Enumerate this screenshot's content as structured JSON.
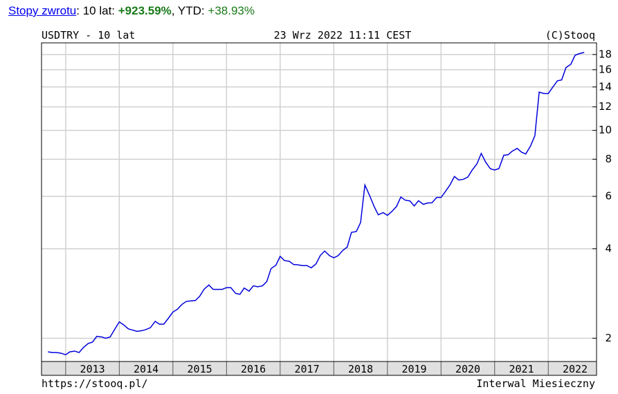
{
  "header": {
    "link": "Stopy zwrotu",
    "sep1": ": 10 lat: ",
    "total": "+923.59%",
    "sep2": ", YTD: ",
    "ytd": "+38.93%"
  },
  "chart_data": {
    "type": "line",
    "title": "USDTRY - 10 lat",
    "date": "23 Wrz 2022 11:11 CEST",
    "copyright": "(C)Stooq",
    "url": "https://stooq.pl/",
    "interval": "Interwal Miesieczny",
    "log_scale": true,
    "grid": true,
    "xlim": [
      2012.55,
      2022.9
    ],
    "xticks": [
      2013,
      2014,
      2015,
      2016,
      2017,
      2018,
      2019,
      2020,
      2021,
      2022
    ],
    "ylim": [
      1.67,
      19.7
    ],
    "yticks": [
      2,
      4,
      6,
      8,
      10,
      12,
      14,
      16,
      18
    ],
    "x": [
      2012.67,
      2012.75,
      2012.83,
      2012.92,
      2013,
      2013.08,
      2013.17,
      2013.25,
      2013.33,
      2013.42,
      2013.5,
      2013.58,
      2013.67,
      2013.75,
      2013.83,
      2013.92,
      2014,
      2014.08,
      2014.17,
      2014.25,
      2014.33,
      2014.42,
      2014.5,
      2014.58,
      2014.67,
      2014.75,
      2014.83,
      2014.92,
      2015,
      2015.08,
      2015.17,
      2015.25,
      2015.33,
      2015.42,
      2015.5,
      2015.58,
      2015.67,
      2015.75,
      2015.83,
      2015.92,
      2016,
      2016.08,
      2016.17,
      2016.25,
      2016.33,
      2016.42,
      2016.5,
      2016.58,
      2016.67,
      2016.75,
      2016.83,
      2016.92,
      2017,
      2017.08,
      2017.17,
      2017.25,
      2017.33,
      2017.42,
      2017.5,
      2017.58,
      2017.67,
      2017.75,
      2017.83,
      2017.92,
      2018,
      2018.08,
      2018.17,
      2018.25,
      2018.33,
      2018.42,
      2018.5,
      2018.58,
      2018.67,
      2018.75,
      2018.83,
      2018.92,
      2019,
      2019.08,
      2019.17,
      2019.25,
      2019.33,
      2019.42,
      2019.5,
      2019.58,
      2019.67,
      2019.75,
      2019.83,
      2019.92,
      2020,
      2020.08,
      2020.17,
      2020.25,
      2020.33,
      2020.42,
      2020.5,
      2020.58,
      2020.67,
      2020.75,
      2020.83,
      2020.92,
      2021,
      2021.08,
      2021.17,
      2021.25,
      2021.33,
      2021.42,
      2021.5,
      2021.58,
      2021.67,
      2021.75,
      2021.83,
      2021.92,
      2022,
      2022.08,
      2022.17,
      2022.25,
      2022.33,
      2022.42,
      2022.5,
      2022.58,
      2022.67
    ],
    "series": [
      {
        "color": "#0000dd",
        "values": [
          1.8,
          1.79,
          1.79,
          1.78,
          1.76,
          1.8,
          1.81,
          1.79,
          1.86,
          1.92,
          1.94,
          2.03,
          2.02,
          2.0,
          2.02,
          2.15,
          2.27,
          2.22,
          2.15,
          2.13,
          2.11,
          2.12,
          2.14,
          2.17,
          2.28,
          2.23,
          2.23,
          2.34,
          2.45,
          2.5,
          2.6,
          2.66,
          2.67,
          2.68,
          2.77,
          2.92,
          3.02,
          2.92,
          2.92,
          2.92,
          2.96,
          2.96,
          2.83,
          2.81,
          2.95,
          2.88,
          3.0,
          2.98,
          3.0,
          3.1,
          3.43,
          3.52,
          3.77,
          3.65,
          3.63,
          3.54,
          3.53,
          3.51,
          3.51,
          3.45,
          3.56,
          3.8,
          3.93,
          3.79,
          3.73,
          3.79,
          3.95,
          4.05,
          4.54,
          4.57,
          4.9,
          6.55,
          6.03,
          5.56,
          5.2,
          5.29,
          5.18,
          5.33,
          5.55,
          5.97,
          5.83,
          5.79,
          5.57,
          5.8,
          5.64,
          5.7,
          5.71,
          5.95,
          5.95,
          6.22,
          6.57,
          7.0,
          6.81,
          6.85,
          6.97,
          7.35,
          7.72,
          8.37,
          7.83,
          7.43,
          7.36,
          7.44,
          8.25,
          8.28,
          8.52,
          8.7,
          8.45,
          8.33,
          8.87,
          9.6,
          13.45,
          13.3,
          13.3,
          13.95,
          14.68,
          14.79,
          16.27,
          16.69,
          17.9,
          18.12,
          18.3
        ]
      }
    ]
  }
}
